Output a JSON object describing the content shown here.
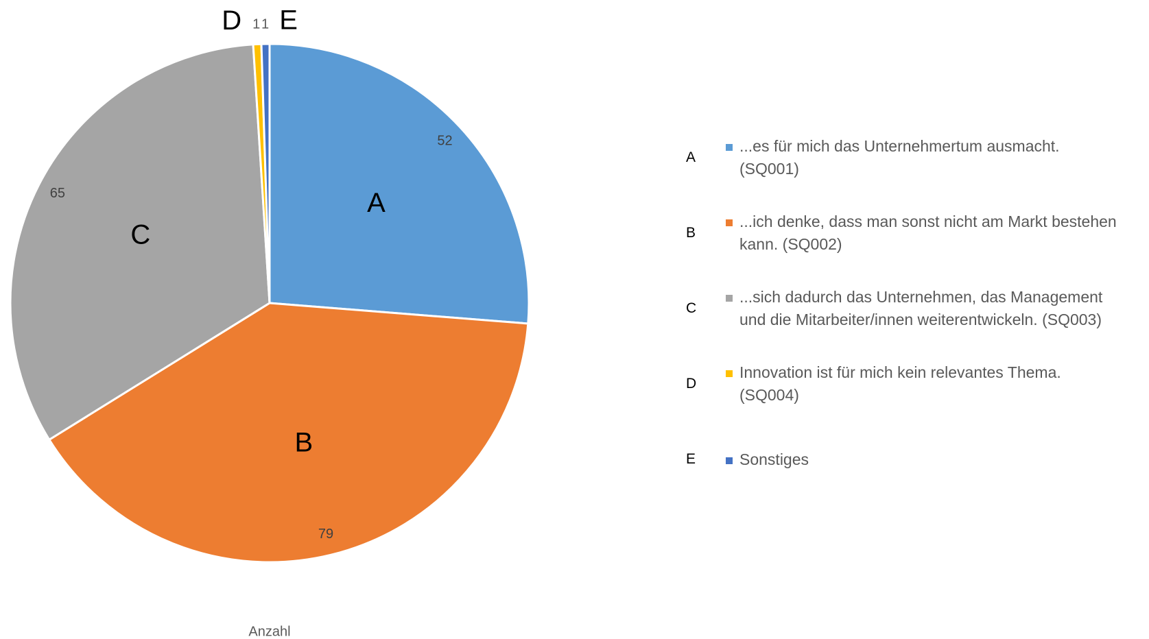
{
  "chart_data": {
    "type": "pie",
    "series_name": "Anzahl",
    "categories": [
      "A",
      "B",
      "C",
      "D",
      "E"
    ],
    "legend_labels": [
      "...es für mich das Unternehmertum ausmacht. (SQ001)",
      "...ich denke, dass man sonst nicht am Markt bestehen kann. (SQ002)",
      "...sich dadurch das Unternehmen, das Management und die Mitarbeiter/innen weiterentwickeln. (SQ003)",
      "Innovation ist für mich kein relevantes Thema. (SQ004)",
      "Sonstiges"
    ],
    "values": [
      52,
      79,
      65,
      1,
      1
    ],
    "colors": [
      "#5b9bd5",
      "#ed7d31",
      "#a5a5a5",
      "#ffc000",
      "#4472c4"
    ],
    "legend_position": "right"
  }
}
